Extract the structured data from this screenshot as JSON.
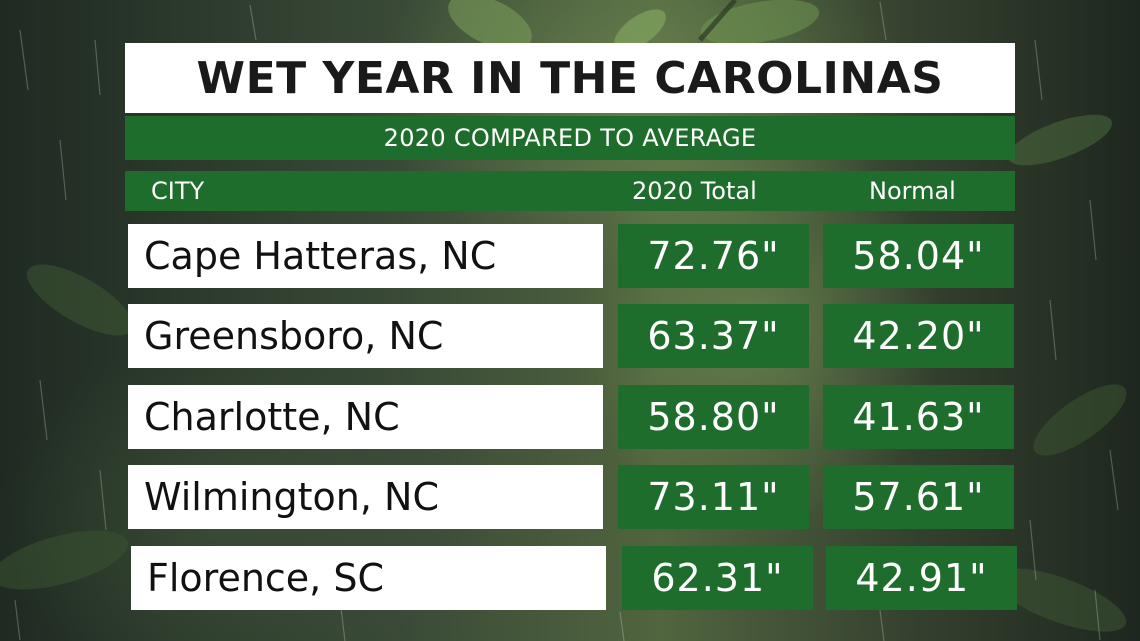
{
  "colors": {
    "panel_green": "#1f6d2c",
    "panel_white": "#ffffff",
    "title_text": "#1a1a1a"
  },
  "title": "WET YEAR IN THE CAROLINAS",
  "subtitle": "2020 COMPARED TO AVERAGE",
  "headers": {
    "city": "CITY",
    "total": "2020 Total",
    "normal": "Normal"
  },
  "rows": [
    {
      "city": "Cape Hatteras, NC",
      "total": "72.76\"",
      "normal": "58.04\""
    },
    {
      "city": "Greensboro, NC",
      "total": "63.37\"",
      "normal": "42.20\""
    },
    {
      "city": "Charlotte, NC",
      "total": "58.80\"",
      "normal": "41.63\""
    },
    {
      "city": "Wilmington, NC",
      "total": "73.11\"",
      "normal": "57.61\""
    },
    {
      "city": "Florence, SC",
      "total": "62.31\"",
      "normal": "42.91\""
    }
  ],
  "background": {
    "description_icon": "rain-leaves-background"
  }
}
